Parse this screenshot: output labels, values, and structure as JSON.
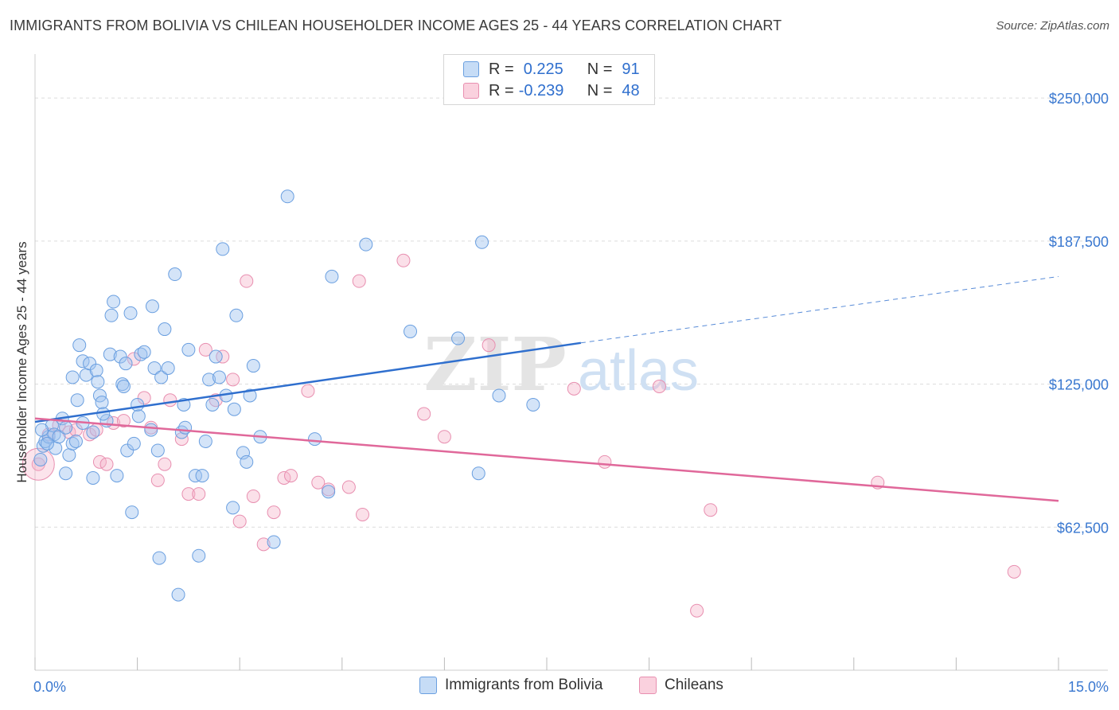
{
  "title": "IMMIGRANTS FROM BOLIVIA VS CHILEAN HOUSEHOLDER INCOME AGES 25 - 44 YEARS CORRELATION CHART",
  "source": "Source: ZipAtlas.com",
  "watermark": {
    "zip": "ZIP",
    "atlas": "atlas"
  },
  "legend": {
    "row1": {
      "r_label": "R =",
      "r_value": "0.225",
      "n_label": "N =",
      "n_value": "91"
    },
    "row2": {
      "r_label": "R =",
      "r_value": "-0.239",
      "n_label": "N =",
      "n_value": "48"
    }
  },
  "bottom_legend": {
    "series1": "Immigrants from Bolivia",
    "series2": "Chileans"
  },
  "colors": {
    "blue_fill": "rgba(160,196,240,0.45)",
    "blue_stroke": "#6a9fe0",
    "blue_line": "#2f6fce",
    "pink_fill": "rgba(246,178,200,0.40)",
    "pink_stroke": "#e88fb0",
    "pink_line": "#e0689a",
    "axis_text": "#3a78d0",
    "grid": "#dcdcdc"
  },
  "chart_data": {
    "type": "scatter",
    "title": "IMMIGRANTS FROM BOLIVIA VS CHILEAN HOUSEHOLDER INCOME AGES 25 - 44 YEARS CORRELATION CHART",
    "xlabel": "",
    "ylabel": "Householder Income Ages 25 - 44 years",
    "xlim": [
      0,
      15
    ],
    "ylim": [
      0,
      265000
    ],
    "x_tick_labels": [
      "0.0%",
      "15.0%"
    ],
    "y_ticks": [
      62500,
      125000,
      187500,
      250000
    ],
    "y_tick_labels": [
      "$62,500",
      "$125,000",
      "$187,500",
      "$250,000"
    ],
    "grid": true,
    "legend_position": "top-center",
    "series": [
      {
        "name": "Immigrants from Bolivia",
        "color": "#6a9fe0",
        "trend": {
          "x": [
            0,
            8.0
          ],
          "y": [
            108500,
            143000
          ],
          "dashed_to": {
            "x": 15,
            "y": 172000
          }
        },
        "points": [
          [
            0.08,
            92000
          ],
          [
            0.12,
            98000
          ],
          [
            0.15,
            100000
          ],
          [
            0.2,
            102000
          ],
          [
            0.25,
            107000
          ],
          [
            0.28,
            103000
          ],
          [
            0.3,
            97000
          ],
          [
            0.35,
            102000
          ],
          [
            0.4,
            110000
          ],
          [
            0.45,
            106000
          ],
          [
            0.45,
            86000
          ],
          [
            0.5,
            94000
          ],
          [
            0.55,
            99000
          ],
          [
            0.6,
            100000
          ],
          [
            0.62,
            118000
          ],
          [
            0.65,
            142000
          ],
          [
            0.7,
            108000
          ],
          [
            0.7,
            135000
          ],
          [
            0.75,
            129000
          ],
          [
            0.8,
            134000
          ],
          [
            0.85,
            104000
          ],
          [
            0.9,
            131000
          ],
          [
            0.92,
            126000
          ],
          [
            0.95,
            120000
          ],
          [
            0.98,
            117000
          ],
          [
            1.05,
            109000
          ],
          [
            1.1,
            138000
          ],
          [
            1.12,
            155000
          ],
          [
            1.15,
            161000
          ],
          [
            1.2,
            85000
          ],
          [
            1.25,
            137000
          ],
          [
            1.28,
            125000
          ],
          [
            1.3,
            124000
          ],
          [
            1.33,
            134000
          ],
          [
            1.35,
            96000
          ],
          [
            1.4,
            156000
          ],
          [
            1.42,
            69000
          ],
          [
            1.45,
            99000
          ],
          [
            1.5,
            116000
          ],
          [
            1.52,
            111000
          ],
          [
            1.55,
            138000
          ],
          [
            1.6,
            139000
          ],
          [
            1.7,
            105000
          ],
          [
            1.72,
            159000
          ],
          [
            1.75,
            132000
          ],
          [
            1.8,
            96000
          ],
          [
            1.82,
            49000
          ],
          [
            1.85,
            128000
          ],
          [
            1.9,
            149000
          ],
          [
            1.95,
            132000
          ],
          [
            2.05,
            173000
          ],
          [
            2.1,
            33000
          ],
          [
            2.15,
            104000
          ],
          [
            2.18,
            116000
          ],
          [
            2.2,
            106000
          ],
          [
            2.25,
            140000
          ],
          [
            2.35,
            85000
          ],
          [
            2.4,
            50000
          ],
          [
            2.45,
            85000
          ],
          [
            2.5,
            100000
          ],
          [
            2.55,
            127000
          ],
          [
            2.6,
            116000
          ],
          [
            2.65,
            137000
          ],
          [
            2.7,
            128000
          ],
          [
            2.75,
            184000
          ],
          [
            2.8,
            120000
          ],
          [
            2.9,
            71000
          ],
          [
            2.92,
            114000
          ],
          [
            2.95,
            155000
          ],
          [
            3.05,
            95000
          ],
          [
            3.1,
            91000
          ],
          [
            3.15,
            120000
          ],
          [
            3.2,
            133000
          ],
          [
            3.3,
            102000
          ],
          [
            3.5,
            56000
          ],
          [
            3.7,
            207000
          ],
          [
            4.1,
            101000
          ],
          [
            4.3,
            78000
          ],
          [
            4.35,
            172000
          ],
          [
            4.85,
            186000
          ],
          [
            5.5,
            148000
          ],
          [
            6.2,
            145000
          ],
          [
            6.5,
            86000
          ],
          [
            6.55,
            187000
          ],
          [
            6.8,
            120000
          ],
          [
            7.3,
            116000
          ],
          [
            0.1,
            105000
          ],
          [
            0.18,
            99000
          ],
          [
            0.55,
            128000
          ],
          [
            1.0,
            112000
          ],
          [
            0.85,
            84000
          ]
        ]
      },
      {
        "name": "Chileans",
        "color": "#e88fb0",
        "trend": {
          "x": [
            0,
            15
          ],
          "y": [
            110000,
            74000
          ]
        },
        "points": [
          [
            0.05,
            90000
          ],
          [
            0.2,
            103000
          ],
          [
            0.35,
            107000
          ],
          [
            0.5,
            104000
          ],
          [
            0.6,
            105000
          ],
          [
            0.8,
            103000
          ],
          [
            0.9,
            105000
          ],
          [
            0.95,
            91000
          ],
          [
            1.05,
            90000
          ],
          [
            1.15,
            108000
          ],
          [
            1.3,
            109000
          ],
          [
            1.45,
            136000
          ],
          [
            1.6,
            119000
          ],
          [
            1.7,
            106000
          ],
          [
            1.8,
            83000
          ],
          [
            1.9,
            90000
          ],
          [
            1.98,
            118000
          ],
          [
            2.15,
            101000
          ],
          [
            2.25,
            77000
          ],
          [
            2.4,
            77000
          ],
          [
            2.5,
            140000
          ],
          [
            2.65,
            118000
          ],
          [
            2.75,
            137000
          ],
          [
            2.9,
            127000
          ],
          [
            3.0,
            65000
          ],
          [
            3.1,
            170000
          ],
          [
            3.2,
            76000
          ],
          [
            3.35,
            55000
          ],
          [
            3.5,
            69000
          ],
          [
            3.65,
            84000
          ],
          [
            3.75,
            85000
          ],
          [
            4.0,
            122000
          ],
          [
            4.15,
            82000
          ],
          [
            4.3,
            79000
          ],
          [
            4.6,
            80000
          ],
          [
            4.75,
            170000
          ],
          [
            4.8,
            68000
          ],
          [
            5.4,
            179000
          ],
          [
            5.7,
            112000
          ],
          [
            6.0,
            102000
          ],
          [
            6.65,
            142000
          ],
          [
            7.9,
            123000
          ],
          [
            8.35,
            91000
          ],
          [
            9.15,
            124000
          ],
          [
            9.7,
            26000
          ],
          [
            9.9,
            70000
          ],
          [
            12.35,
            82000
          ],
          [
            14.35,
            43000
          ]
        ]
      }
    ]
  }
}
